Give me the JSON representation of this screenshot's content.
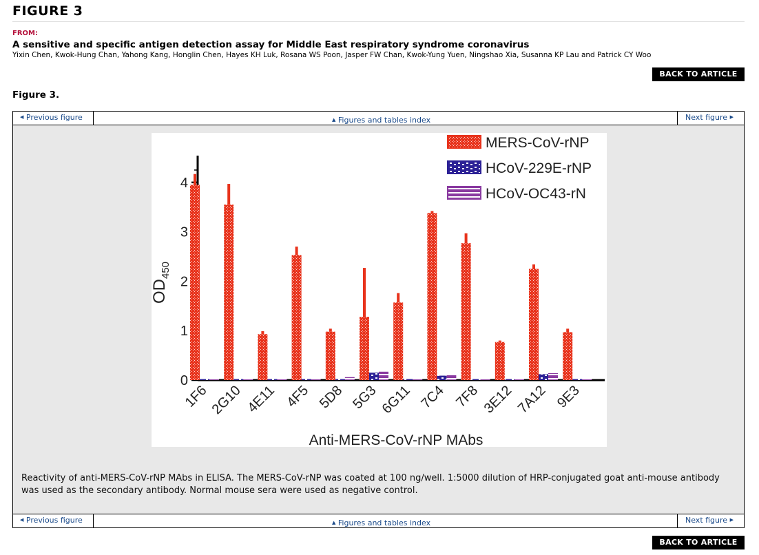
{
  "page": {
    "heading": "FIGURE 3",
    "from_label": "FROM:",
    "article_title": "A sensitive and specific antigen detection assay for Middle East respiratory syndrome coronavirus",
    "authors": "Yixin Chen, Kwok-Hung Chan, Yahong Kang, Honglin Chen, Hayes KH Luk, Rosana WS Poon, Jasper FW Chan, Kwok-Yung Yuen, Ningshao Xia, Susanna KP Lau and Patrick CY Woo",
    "back_button": "BACK TO ARTICLE",
    "figure_label": "Figure 3."
  },
  "nav": {
    "prev": "Previous figure",
    "index": "Figures and tables index",
    "next": "Next figure",
    "prev_icon": "triangle-left-icon",
    "index_icon": "triangle-up-icon",
    "next_icon": "triangle-right-icon"
  },
  "caption": "Reactivity of anti-MERS-CoV-rNP MAbs in ELISA. The MERS-CoV-rNP was coated at 100 ng/well. 1:5000 dilution of HRP-conjugated goat anti-mouse antibody was used as the secondary antibody. Normal mouse sera were used as negative control.",
  "colors": {
    "link": "#1a4a8a",
    "from_label": "#b5123c",
    "figure_background": "#e8e8e8"
  },
  "chart_data": {
    "type": "bar",
    "xlabel": "Anti-MERS-CoV-rNP MAbs",
    "ylabel": "OD",
    "ylabel_sub": "450",
    "ylim": [
      0,
      4.5
    ],
    "yticks": [
      0,
      1,
      2,
      3,
      4
    ],
    "legend_position": "top-right",
    "categories": [
      "1F6",
      "2G10",
      "4E11",
      "4F5",
      "5D8",
      "5G3",
      "6G11",
      "7C4",
      "7F8",
      "3E12",
      "7A12",
      "9E3"
    ],
    "series": [
      {
        "name": "MERS-CoV-rNP",
        "color": "#e8331c",
        "values": [
          3.95,
          3.55,
          0.93,
          2.53,
          0.98,
          1.28,
          1.57,
          3.38,
          2.77,
          0.77,
          2.25,
          0.97
        ],
        "error": [
          0.22,
          0.42,
          0.06,
          0.17,
          0.06,
          0.99,
          0.19,
          0.04,
          0.2,
          0.03,
          0.09,
          0.07
        ]
      },
      {
        "name": "HCoV-229E-rNP",
        "color": "#2c2196",
        "values": [
          0.02,
          0.02,
          0.02,
          0.02,
          0.02,
          0.15,
          0.02,
          0.09,
          0.02,
          0.02,
          0.12,
          0.02
        ],
        "error": [
          0,
          0,
          0,
          0,
          0,
          0.02,
          0,
          0.01,
          0,
          0,
          0.01,
          0
        ]
      },
      {
        "name": "HCoV-OC43-rN",
        "color": "#8a3aa0",
        "values": [
          0.02,
          0.03,
          0.03,
          0.02,
          0.06,
          0.17,
          0.02,
          0.12,
          0.02,
          0.03,
          0.14,
          0.03
        ],
        "error": [
          0,
          0,
          0,
          0,
          0,
          0.02,
          0,
          0.01,
          0,
          0,
          0.02,
          0
        ]
      }
    ]
  }
}
